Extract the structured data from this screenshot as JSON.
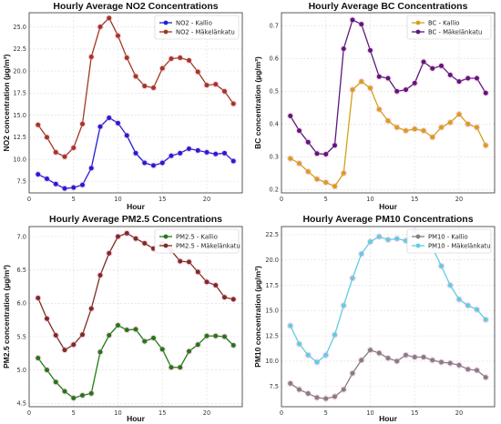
{
  "colors": {
    "blue": "#1f1fd6",
    "darkred": "#9e3a20",
    "gold": "#d4a017",
    "purple": "#5a1a7a",
    "green": "#1f7a14",
    "brown": "#7a2e22",
    "gray": "#808080",
    "cyan": "#5bcfe0",
    "marker_glow": "#ff88cc"
  },
  "chart_data": [
    {
      "type": "line",
      "title": "Hourly Average NO2 Concentrations",
      "xlabel": "Hour",
      "ylabel": "NO2 concentration (µg/m³)",
      "xlim": [
        0,
        24
      ],
      "ylim": [
        6.2,
        26.6
      ],
      "xticks": [
        0,
        5,
        10,
        15,
        20
      ],
      "yticks": [
        7.5,
        10.0,
        12.5,
        15.0,
        17.5,
        20.0,
        22.5,
        25.0
      ],
      "legend_position": "top-right",
      "x": [
        1,
        2,
        3,
        4,
        5,
        6,
        7,
        8,
        9,
        10,
        11,
        12,
        13,
        14,
        15,
        16,
        17,
        18,
        19,
        20,
        21,
        22,
        23
      ],
      "series": [
        {
          "name": "NO2 - Kallio",
          "color": "blue",
          "values": [
            8.3,
            7.8,
            7.2,
            6.7,
            6.8,
            7.1,
            9.0,
            13.7,
            14.7,
            14.1,
            12.7,
            10.7,
            9.6,
            9.3,
            9.6,
            10.4,
            10.7,
            11.2,
            11.0,
            10.8,
            10.6,
            10.7,
            9.8
          ]
        },
        {
          "name": "NO2 - Mäkelänkatu",
          "color": "darkred",
          "values": [
            13.9,
            12.5,
            10.8,
            10.3,
            11.3,
            14.0,
            21.6,
            25.0,
            26.0,
            24.0,
            21.5,
            19.4,
            18.3,
            18.1,
            20.3,
            21.4,
            21.5,
            21.2,
            19.9,
            18.4,
            18.5,
            17.7,
            16.3
          ]
        }
      ]
    },
    {
      "type": "line",
      "title": "Hourly Average BC Concentrations",
      "xlabel": "Hour",
      "ylabel": "BC concentration (µg/m³)",
      "xlim": [
        0,
        24
      ],
      "ylim": [
        0.19,
        0.74
      ],
      "xticks": [
        0,
        5,
        10,
        15,
        20
      ],
      "yticks": [
        0.2,
        0.3,
        0.4,
        0.5,
        0.6,
        0.7
      ],
      "legend_position": "top-right",
      "x": [
        1,
        2,
        3,
        4,
        5,
        6,
        7,
        8,
        9,
        10,
        11,
        12,
        13,
        14,
        15,
        16,
        17,
        18,
        19,
        20,
        21,
        22,
        23
      ],
      "series": [
        {
          "name": "BC - Kallio",
          "color": "gold",
          "values": [
            0.295,
            0.28,
            0.255,
            0.232,
            0.222,
            0.21,
            0.25,
            0.505,
            0.53,
            0.51,
            0.445,
            0.41,
            0.39,
            0.38,
            0.385,
            0.38,
            0.36,
            0.39,
            0.405,
            0.43,
            0.4,
            0.39,
            0.335
          ]
        },
        {
          "name": "BC - Mäkelänkatu",
          "color": "purple",
          "values": [
            0.425,
            0.38,
            0.345,
            0.31,
            0.308,
            0.335,
            0.63,
            0.718,
            0.705,
            0.625,
            0.545,
            0.54,
            0.5,
            0.505,
            0.525,
            0.59,
            0.57,
            0.578,
            0.55,
            0.53,
            0.54,
            0.54,
            0.495
          ]
        }
      ]
    },
    {
      "type": "line",
      "title": "Hourly Average PM2.5 Concentrations",
      "xlabel": "Hour",
      "ylabel": "PM2.5 concentration (µg/m³)",
      "xlim": [
        0,
        24
      ],
      "ylim": [
        4.45,
        7.15
      ],
      "xticks": [
        0,
        5,
        10,
        15,
        20
      ],
      "yticks": [
        4.5,
        5.0,
        5.5,
        6.0,
        6.5,
        7.0
      ],
      "legend_position": "top-right",
      "x": [
        1,
        2,
        3,
        4,
        5,
        6,
        7,
        8,
        9,
        10,
        11,
        12,
        13,
        14,
        15,
        16,
        17,
        18,
        19,
        20,
        21,
        22,
        23
      ],
      "series": [
        {
          "name": "PM2.5 - Kallio",
          "color": "green",
          "values": [
            5.18,
            5.0,
            4.82,
            4.68,
            4.58,
            4.62,
            4.65,
            5.27,
            5.52,
            5.67,
            5.6,
            5.61,
            5.43,
            5.48,
            5.31,
            5.04,
            5.04,
            5.28,
            5.38,
            5.51,
            5.51,
            5.5,
            5.37
          ]
        },
        {
          "name": "PM2.5 - Mäkelänkatu",
          "color": "brown",
          "values": [
            6.08,
            5.77,
            5.52,
            5.3,
            5.38,
            5.53,
            5.92,
            6.42,
            6.75,
            7.0,
            7.05,
            6.97,
            6.9,
            6.82,
            6.9,
            6.79,
            6.63,
            6.62,
            6.47,
            6.32,
            6.27,
            6.09,
            6.06
          ]
        }
      ]
    },
    {
      "type": "line",
      "title": "Hourly Average PM10 Concentrations",
      "xlabel": "Hour",
      "ylabel": "PM10 concentration (µg/m³)",
      "xlim": [
        0,
        24
      ],
      "ylim": [
        5.5,
        23.3
      ],
      "xticks": [
        0,
        5,
        10,
        15,
        20
      ],
      "yticks": [
        7.5,
        10.0,
        12.5,
        15.0,
        17.5,
        20.0,
        22.5
      ],
      "legend_position": "top-right",
      "x": [
        1,
        2,
        3,
        4,
        5,
        6,
        7,
        8,
        9,
        10,
        11,
        12,
        13,
        14,
        15,
        16,
        17,
        18,
        19,
        20,
        21,
        22,
        23
      ],
      "series": [
        {
          "name": "PM10 - Kallio",
          "color": "gray",
          "values": [
            7.8,
            7.2,
            6.8,
            6.4,
            6.3,
            6.5,
            7.2,
            8.8,
            10.1,
            11.1,
            10.8,
            10.3,
            10.0,
            10.6,
            10.4,
            10.4,
            10.1,
            9.9,
            9.8,
            9.6,
            9.2,
            9.1,
            8.4
          ]
        },
        {
          "name": "PM10 - Mäkelänkatu",
          "color": "cyan",
          "values": [
            13.5,
            11.7,
            10.6,
            9.9,
            10.6,
            12.6,
            15.5,
            18.2,
            20.6,
            21.8,
            22.3,
            22.0,
            22.1,
            21.9,
            22.8,
            22.5,
            21.2,
            19.4,
            17.5,
            16.1,
            15.5,
            15.1,
            14.1
          ]
        }
      ]
    }
  ]
}
